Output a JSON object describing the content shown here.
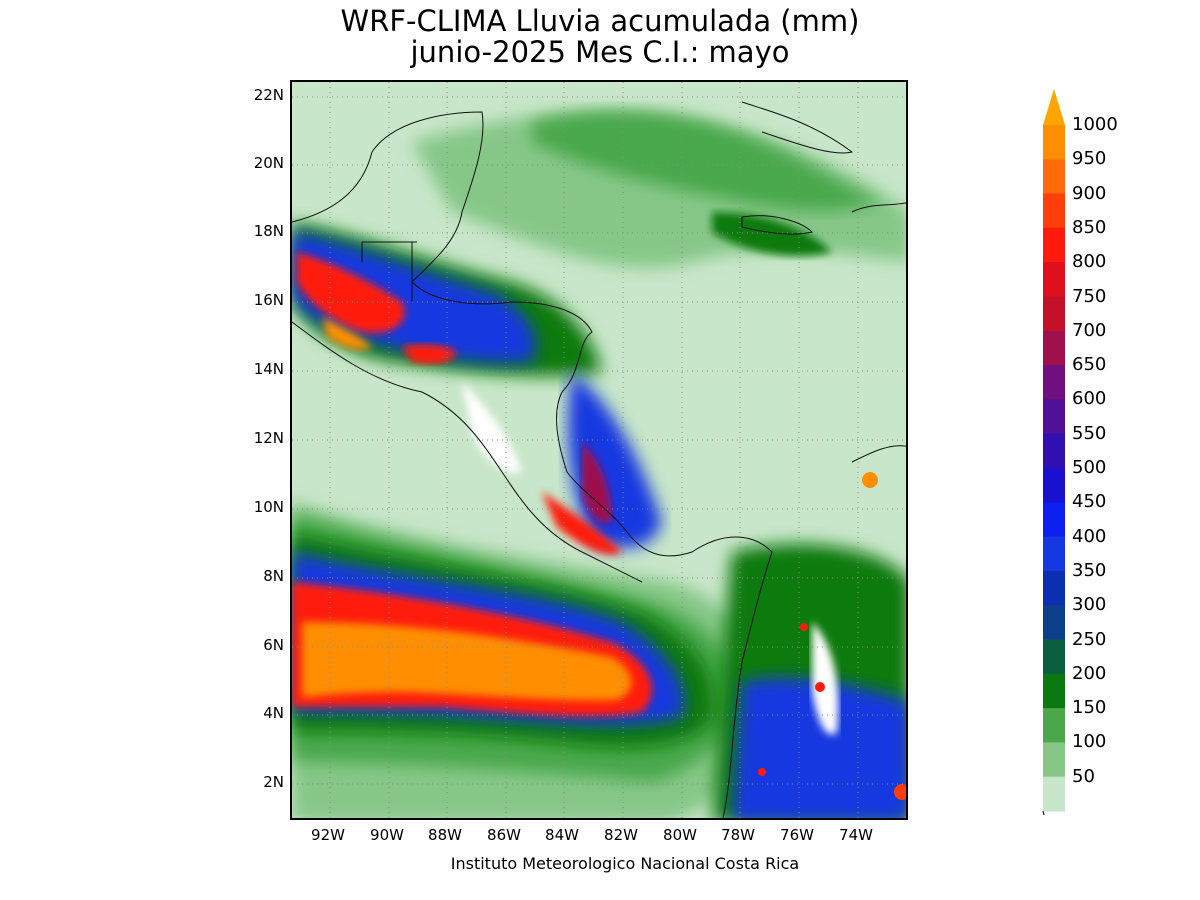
{
  "title": {
    "line1": "WRF-CLIMA Lluvia acumulada (mm)",
    "line2": "junio-2025 Mes C.I.: mayo"
  },
  "credit": "Instituto Meteorologico Nacional Costa Rica",
  "axes": {
    "lat_labels": [
      "22N",
      "20N",
      "18N",
      "16N",
      "14N",
      "12N",
      "10N",
      "8N",
      "6N",
      "4N",
      "2N"
    ],
    "lon_labels": [
      "92W",
      "90W",
      "88W",
      "86W",
      "84W",
      "82W",
      "80W",
      "78W",
      "76W",
      "74W"
    ]
  },
  "colorbar": {
    "levels": [
      "50",
      "100",
      "150",
      "200",
      "250",
      "300",
      "350",
      "400",
      "450",
      "500",
      "550",
      "600",
      "650",
      "700",
      "750",
      "800",
      "850",
      "900",
      "950",
      "1000"
    ],
    "colors": [
      "#c8e6c9",
      "#86c788",
      "#4aa84b",
      "#0a7a10",
      "#0b5f40",
      "#0b3f8a",
      "#0a2fb0",
      "#1439e0",
      "#0b1ff0",
      "#1a10d0",
      "#3010b0",
      "#520f98",
      "#700f80",
      "#a0104c",
      "#c5102a",
      "#e00f1c",
      "#ff1a0e",
      "#ff3e0a",
      "#ff6a0a",
      "#ff8f00"
    ],
    "overflow_color": "#ffa500"
  }
}
